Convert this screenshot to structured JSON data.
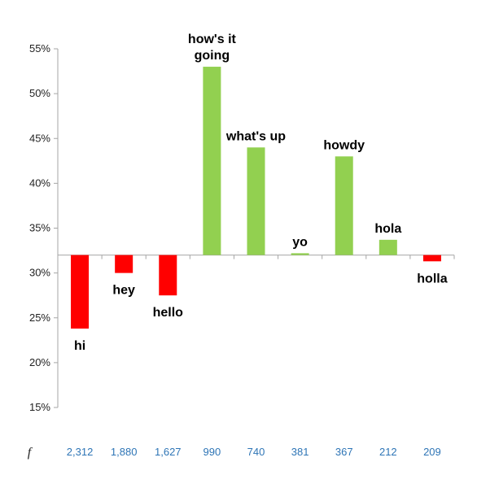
{
  "chart_data": {
    "type": "bar",
    "categories": [
      "hi",
      "hey",
      "hello",
      "how's it going",
      "what's up",
      "yo",
      "howdy",
      "hola",
      "holla"
    ],
    "values": [
      23.8,
      30.0,
      27.5,
      53.0,
      44.0,
      32.2,
      43.0,
      33.7,
      31.3
    ],
    "baseline": 32,
    "ylim": [
      15,
      55
    ],
    "yticks": [
      15,
      20,
      25,
      30,
      35,
      40,
      45,
      50,
      55
    ],
    "ytick_labels": [
      "15%",
      "20%",
      "25%",
      "30%",
      "35%",
      "40%",
      "45%",
      "50%",
      "55%"
    ],
    "data_labels": [
      [
        "hi"
      ],
      [
        "hey"
      ],
      [
        "hello"
      ],
      [
        "how's it",
        "going"
      ],
      [
        "what's up"
      ],
      [
        "yo"
      ],
      [
        "howdy"
      ],
      [
        "hola"
      ],
      [
        "holla"
      ]
    ],
    "frequency_symbol": "f",
    "frequencies": [
      "2,312",
      "1,880",
      "1,627",
      "990",
      "740",
      "381",
      "367",
      "212",
      "209"
    ],
    "colors": {
      "above": "#92d050",
      "below": "#ff0000",
      "frequency_text": "#2e75b6",
      "axis": "#a6a6a6"
    },
    "title": "",
    "xlabel": "",
    "ylabel": ""
  }
}
